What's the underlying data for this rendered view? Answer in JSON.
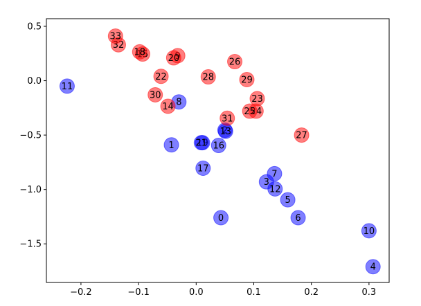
{
  "chart_data": {
    "type": "scatter",
    "title": "",
    "xlabel": "",
    "ylabel": "",
    "xlim": [
      -0.26,
      0.335
    ],
    "ylim": [
      -1.855,
      0.57
    ],
    "xticks": [
      -0.2,
      -0.1,
      0.0,
      0.1,
      0.2,
      0.3
    ],
    "xtick_labels": [
      "−0.2",
      "−0.1",
      "0.0",
      "0.1",
      "0.2",
      "0.3"
    ],
    "yticks": [
      0.5,
      0.0,
      -0.5,
      -1.0,
      -1.5
    ],
    "ytick_labels": [
      "0.5",
      "0.0",
      "−0.5",
      "−1.0",
      "−1.5"
    ],
    "grid": false,
    "series": [
      {
        "color": "#0000ff",
        "points": [
          {
            "label": "0",
            "x": 0.043,
            "y": -1.26
          },
          {
            "label": "1",
            "x": -0.043,
            "y": -0.59
          },
          {
            "label": "2",
            "x": 0.05,
            "y": -0.455
          },
          {
            "label": "3",
            "x": 0.122,
            "y": -0.93
          },
          {
            "label": "4",
            "x": 0.307,
            "y": -1.71
          },
          {
            "label": "5",
            "x": 0.159,
            "y": -1.095
          },
          {
            "label": "6",
            "x": 0.177,
            "y": -1.26
          },
          {
            "label": "7",
            "x": 0.136,
            "y": -0.855
          },
          {
            "label": "8",
            "x": -0.03,
            "y": -0.195
          },
          {
            "label": "10",
            "x": 0.3,
            "y": -1.38
          },
          {
            "label": "11",
            "x": -0.224,
            "y": -0.05
          },
          {
            "label": "12",
            "x": 0.137,
            "y": -0.995
          },
          {
            "label": "13",
            "x": 0.051,
            "y": -0.465
          },
          {
            "label": "16",
            "x": 0.039,
            "y": -0.595
          },
          {
            "label": "17",
            "x": 0.012,
            "y": -0.805
          },
          {
            "label": "19",
            "x": 0.011,
            "y": -0.57
          },
          {
            "label": "21",
            "x": 0.009,
            "y": -0.57
          }
        ]
      },
      {
        "color": "#ff0000",
        "points": [
          {
            "label": "9",
            "x": -0.032,
            "y": 0.23
          },
          {
            "label": "14",
            "x": -0.049,
            "y": -0.235
          },
          {
            "label": "15",
            "x": -0.093,
            "y": 0.245
          },
          {
            "label": "18",
            "x": -0.098,
            "y": 0.265
          },
          {
            "label": "20",
            "x": -0.039,
            "y": 0.21
          },
          {
            "label": "22",
            "x": -0.061,
            "y": 0.04
          },
          {
            "label": "23",
            "x": 0.106,
            "y": -0.165
          },
          {
            "label": "24",
            "x": 0.104,
            "y": -0.28
          },
          {
            "label": "25",
            "x": 0.093,
            "y": -0.28
          },
          {
            "label": "26",
            "x": 0.067,
            "y": 0.175
          },
          {
            "label": "27",
            "x": 0.183,
            "y": -0.5
          },
          {
            "label": "28",
            "x": 0.021,
            "y": 0.035
          },
          {
            "label": "29",
            "x": 0.088,
            "y": 0.01
          },
          {
            "label": "30",
            "x": -0.071,
            "y": -0.13
          },
          {
            "label": "31",
            "x": 0.054,
            "y": -0.345
          },
          {
            "label": "32",
            "x": -0.135,
            "y": 0.33
          },
          {
            "label": "33",
            "x": -0.14,
            "y": 0.41
          }
        ]
      }
    ]
  }
}
